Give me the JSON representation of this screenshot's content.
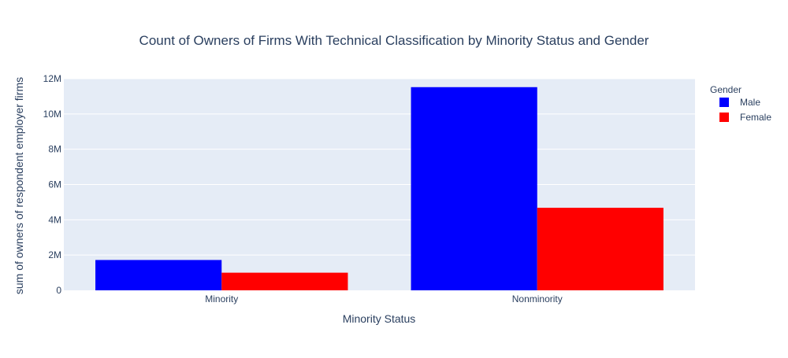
{
  "chart_data": {
    "type": "bar",
    "title": "Count of Owners of Firms With Technical Classification by Minority Status and Gender",
    "xlabel": "Minority Status",
    "ylabel": "sum of owners of respondent employer firms",
    "categories": [
      "Minority",
      "Nonminority"
    ],
    "series": [
      {
        "name": "Male",
        "color": "#0000ff",
        "values": [
          1720000,
          11520000
        ]
      },
      {
        "name": "Female",
        "color": "#ff0000",
        "values": [
          1000000,
          4680000
        ]
      }
    ],
    "ylim": [
      0,
      12000000
    ],
    "yticks": [
      0,
      2000000,
      4000000,
      6000000,
      8000000,
      10000000,
      12000000
    ],
    "ytick_labels": [
      "0",
      "2M",
      "4M",
      "6M",
      "8M",
      "10M",
      "12M"
    ],
    "legend_title": "Gender",
    "legend_position": "top-right",
    "grid": true,
    "plot_bg": "#e5ecf6"
  }
}
